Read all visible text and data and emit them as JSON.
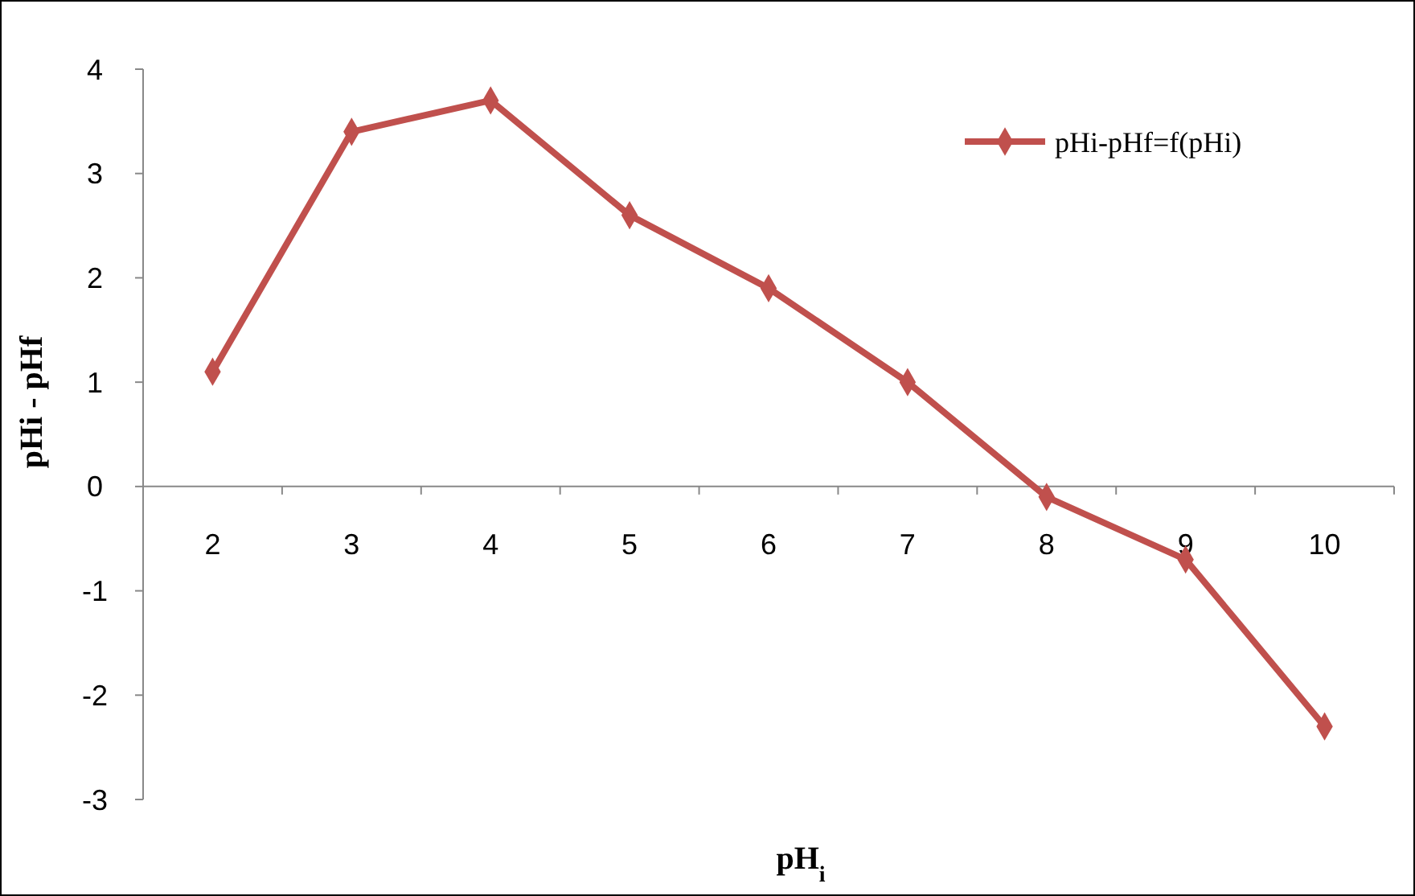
{
  "chart_data": {
    "type": "line",
    "xlabel": "pH$_{i}$",
    "ylabel": "pHi - pHf",
    "categories": [
      "2",
      "3",
      "4",
      "5",
      "6",
      "7",
      "8",
      "9",
      "10"
    ],
    "series": [
      {
        "name": "pHi-pHf=f(pHi)",
        "color": "#c0504d",
        "values": [
          1.1,
          3.4,
          3.7,
          2.6,
          1.9,
          1.0,
          -0.1,
          -0.7,
          -2.3
        ]
      }
    ],
    "ylim": [
      -3,
      4
    ],
    "yticks": [
      -3,
      -2,
      -1,
      0,
      1,
      2,
      3,
      4
    ],
    "grid": false,
    "legend": "top right",
    "marker": "diamond",
    "line_style": "solid"
  }
}
